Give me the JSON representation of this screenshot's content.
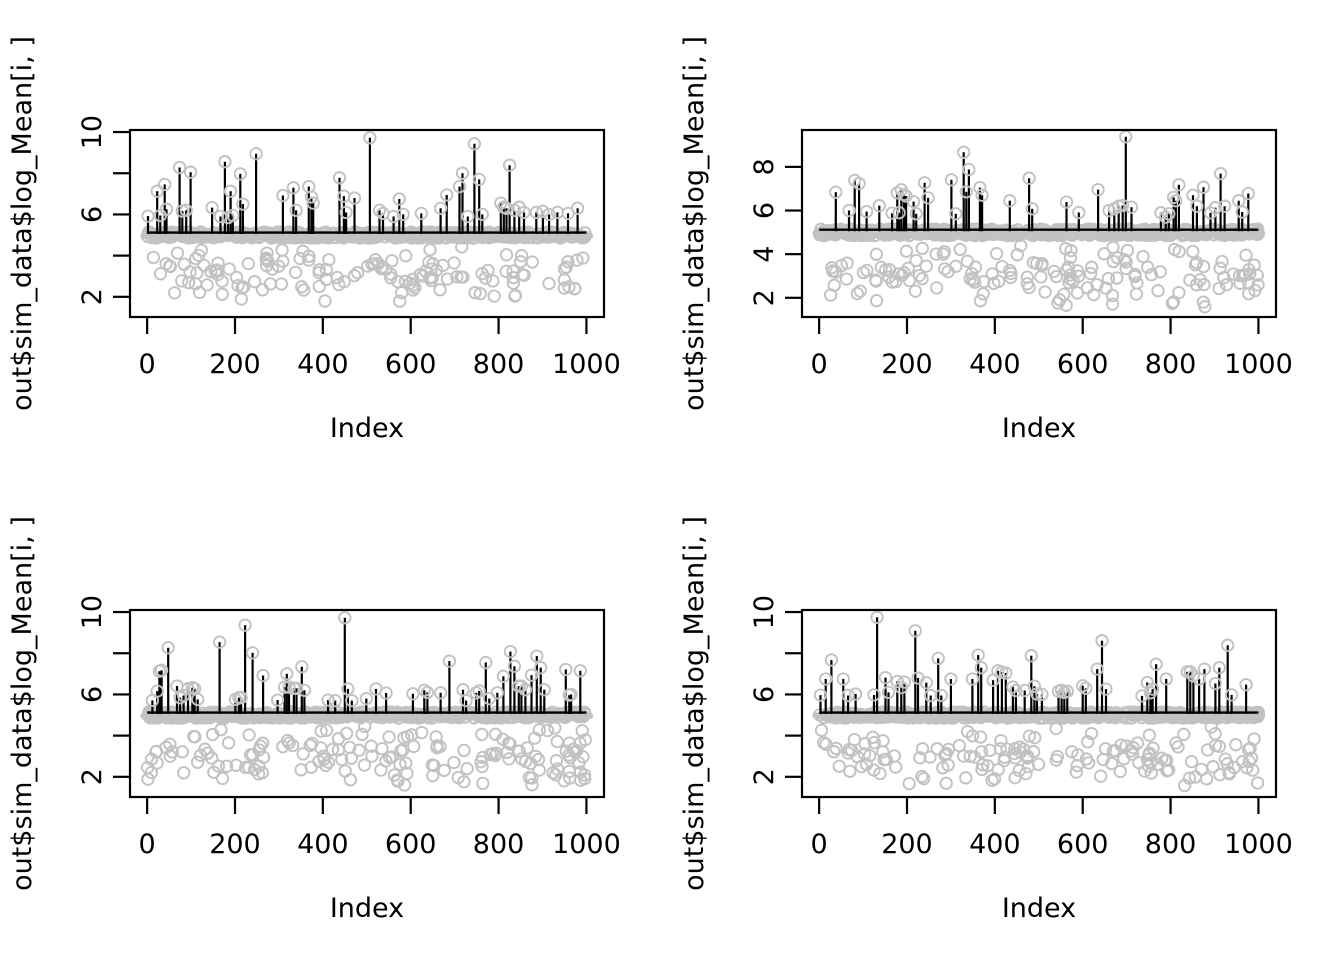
{
  "figure": {
    "background": "#ffffff",
    "grid": "2x2",
    "colors": {
      "point_stroke": "#c2c2c2",
      "baseline_band": "#c2c2c2",
      "baseline_line": "#000000",
      "stem": "#000000",
      "box": "#000000",
      "text": "#000000"
    }
  },
  "chart_data": [
    {
      "id": "panel-top-left",
      "position": "top-left",
      "type": "scatter",
      "title": "",
      "xlabel": "Index",
      "ylabel": "out$sim_data$log_Mean[i, ]",
      "xlim": [
        -39,
        1040
      ],
      "ylim": [
        1.02,
        10.1
      ],
      "xticks": [
        0,
        200,
        400,
        600,
        800,
        1000
      ],
      "xtick_labels": [
        "0",
        "200",
        "400",
        "600",
        "800",
        "1000"
      ],
      "yticks": [
        2,
        4,
        6,
        8,
        10
      ],
      "ytick_labels": [
        "2",
        "",
        "6",
        "",
        "10"
      ],
      "grid": false,
      "legend": null,
      "n_points_total": 1000,
      "baseline": 5,
      "scatter": {
        "seed": 101,
        "n_below": 135,
        "below_y_min": 1.5,
        "below_y_max": 4.6,
        "n_band": 520,
        "band_halfwidth": 0.15
      },
      "spikes": [
        [
          2,
          5.92
        ],
        [
          23,
          7.13
        ],
        [
          30,
          5.95
        ],
        [
          40,
          7.46
        ],
        [
          44,
          6.25
        ],
        [
          74,
          8.28
        ],
        [
          80,
          6.16
        ],
        [
          89,
          6.2
        ],
        [
          99,
          8.05
        ],
        [
          148,
          6.33
        ],
        [
          167,
          5.9
        ],
        [
          177,
          8.56
        ],
        [
          184,
          5.85
        ],
        [
          190,
          7.13
        ],
        [
          195,
          5.95
        ],
        [
          212,
          7.97
        ],
        [
          218,
          6.5
        ],
        [
          248,
          8.95
        ],
        [
          309,
          6.92
        ],
        [
          333,
          7.3
        ],
        [
          339,
          6.2
        ],
        [
          368,
          7.35
        ],
        [
          374,
          6.85
        ],
        [
          378,
          6.55
        ],
        [
          438,
          7.78
        ],
        [
          448,
          6.89
        ],
        [
          453,
          6.1
        ],
        [
          472,
          6.8
        ],
        [
          507,
          9.72
        ],
        [
          529,
          6.2
        ],
        [
          537,
          6.05
        ],
        [
          561,
          5.9
        ],
        [
          574,
          6.75
        ],
        [
          583,
          6.0
        ],
        [
          624,
          6.05
        ],
        [
          668,
          6.3
        ],
        [
          682,
          6.95
        ],
        [
          711,
          7.35
        ],
        [
          718,
          8.0
        ],
        [
          730,
          5.9
        ],
        [
          745,
          9.43
        ],
        [
          756,
          7.7
        ],
        [
          763,
          6.0
        ],
        [
          805,
          6.55
        ],
        [
          812,
          6.35
        ],
        [
          818,
          6.3
        ],
        [
          825,
          8.39
        ],
        [
          836,
          6.2
        ],
        [
          847,
          6.35
        ],
        [
          858,
          6.1
        ],
        [
          886,
          6.1
        ],
        [
          901,
          6.15
        ],
        [
          915,
          6.0
        ],
        [
          934,
          6.1
        ],
        [
          958,
          6.05
        ],
        [
          980,
          6.3
        ]
      ]
    },
    {
      "id": "panel-top-right",
      "position": "top-right",
      "type": "scatter",
      "title": "",
      "xlabel": "Index",
      "ylabel": "out$sim_data$log_Mean[i, ]",
      "xlim": [
        -39,
        1040
      ],
      "ylim": [
        1.12,
        9.69
      ],
      "xticks": [
        0,
        200,
        400,
        600,
        800,
        1000
      ],
      "xtick_labels": [
        "0",
        "200",
        "400",
        "600",
        "800",
        "1000"
      ],
      "yticks": [
        2,
        4,
        6,
        8
      ],
      "ytick_labels": [
        "2",
        "4",
        "6",
        "8"
      ],
      "grid": false,
      "legend": null,
      "n_points_total": 1000,
      "baseline": 5,
      "scatter": {
        "seed": 202,
        "n_below": 150,
        "below_y_min": 1.5,
        "below_y_max": 4.6,
        "n_band": 520,
        "band_halfwidth": 0.15
      },
      "spikes": [
        [
          38,
          6.84
        ],
        [
          68,
          6.0
        ],
        [
          81,
          7.38
        ],
        [
          91,
          7.24
        ],
        [
          108,
          5.95
        ],
        [
          137,
          6.22
        ],
        [
          166,
          5.88
        ],
        [
          178,
          6.81
        ],
        [
          182,
          5.9
        ],
        [
          187,
          6.95
        ],
        [
          193,
          6.74
        ],
        [
          198,
          6.66
        ],
        [
          215,
          6.41
        ],
        [
          221,
          5.85
        ],
        [
          240,
          7.27
        ],
        [
          248,
          6.58
        ],
        [
          301,
          7.41
        ],
        [
          311,
          5.85
        ],
        [
          329,
          8.67
        ],
        [
          335,
          6.86
        ],
        [
          341,
          7.88
        ],
        [
          366,
          7.05
        ],
        [
          371,
          6.7
        ],
        [
          434,
          6.45
        ],
        [
          478,
          7.48
        ],
        [
          485,
          6.08
        ],
        [
          563,
          6.39
        ],
        [
          591,
          5.91
        ],
        [
          635,
          6.96
        ],
        [
          660,
          6.0
        ],
        [
          672,
          6.08
        ],
        [
          682,
          6.2
        ],
        [
          691,
          6.23
        ],
        [
          698,
          9.38
        ],
        [
          711,
          6.15
        ],
        [
          778,
          5.9
        ],
        [
          789,
          5.7
        ],
        [
          796,
          5.85
        ],
        [
          807,
          6.6
        ],
        [
          812,
          6.45
        ],
        [
          819,
          7.18
        ],
        [
          851,
          6.7
        ],
        [
          860,
          6.2
        ],
        [
          875,
          7.07
        ],
        [
          891,
          5.89
        ],
        [
          902,
          6.13
        ],
        [
          914,
          7.69
        ],
        [
          923,
          6.2
        ],
        [
          955,
          6.45
        ],
        [
          963,
          5.93
        ],
        [
          977,
          6.78
        ]
      ]
    },
    {
      "id": "panel-bottom-left",
      "position": "bottom-left",
      "type": "scatter",
      "title": "",
      "xlabel": "Index",
      "ylabel": "out$sim_data$log_Mean[i, ]",
      "xlim": [
        -39,
        1040
      ],
      "ylim": [
        1.02,
        10.1
      ],
      "xticks": [
        0,
        200,
        400,
        600,
        800,
        1000
      ],
      "xtick_labels": [
        "0",
        "200",
        "400",
        "600",
        "800",
        "1000"
      ],
      "yticks": [
        2,
        4,
        6,
        8,
        10
      ],
      "ytick_labels": [
        "2",
        "",
        "6",
        "",
        "10"
      ],
      "grid": false,
      "legend": null,
      "n_points_total": 1000,
      "baseline": 5,
      "scatter": {
        "seed": 303,
        "n_below": 160,
        "below_y_min": 1.45,
        "below_y_max": 4.6,
        "n_band": 520,
        "band_halfwidth": 0.15
      },
      "spikes": [
        [
          12,
          5.71
        ],
        [
          23,
          6.16
        ],
        [
          28,
          7.13
        ],
        [
          33,
          7.17
        ],
        [
          48,
          8.27
        ],
        [
          68,
          6.41
        ],
        [
          75,
          5.84
        ],
        [
          83,
          5.95
        ],
        [
          93,
          6.28
        ],
        [
          103,
          6.33
        ],
        [
          108,
          6.28
        ],
        [
          115,
          5.76
        ],
        [
          165,
          8.54
        ],
        [
          201,
          5.76
        ],
        [
          209,
          5.84
        ],
        [
          214,
          5.84
        ],
        [
          223,
          9.36
        ],
        [
          240,
          8.02
        ],
        [
          264,
          6.92
        ],
        [
          297,
          5.73
        ],
        [
          313,
          6.35
        ],
        [
          318,
          7.0
        ],
        [
          323,
          6.35
        ],
        [
          334,
          6.3
        ],
        [
          340,
          6.3
        ],
        [
          352,
          7.34
        ],
        [
          358,
          6.2
        ],
        [
          412,
          5.73
        ],
        [
          428,
          5.7
        ],
        [
          450,
          9.72
        ],
        [
          457,
          6.27
        ],
        [
          466,
          5.7
        ],
        [
          499,
          5.8
        ],
        [
          521,
          6.27
        ],
        [
          544,
          6.07
        ],
        [
          605,
          6.03
        ],
        [
          631,
          6.2
        ],
        [
          638,
          6.1
        ],
        [
          668,
          6.08
        ],
        [
          688,
          7.62
        ],
        [
          719,
          6.23
        ],
        [
          726,
          5.7
        ],
        [
          749,
          6.08
        ],
        [
          756,
          6.17
        ],
        [
          771,
          7.55
        ],
        [
          779,
          5.8
        ],
        [
          797,
          6.08
        ],
        [
          811,
          6.88
        ],
        [
          827,
          8.08
        ],
        [
          836,
          7.37
        ],
        [
          846,
          6.4
        ],
        [
          852,
          6.4
        ],
        [
          861,
          6.23
        ],
        [
          875,
          6.94
        ],
        [
          887,
          7.86
        ],
        [
          896,
          7.3
        ],
        [
          904,
          6.23
        ],
        [
          953,
          7.21
        ],
        [
          961,
          5.97
        ],
        [
          965,
          6.0
        ],
        [
          986,
          7.15
        ]
      ]
    },
    {
      "id": "panel-bottom-right",
      "position": "bottom-right",
      "type": "scatter",
      "title": "",
      "xlabel": "Index",
      "ylabel": "out$sim_data$log_Mean[i, ]",
      "xlim": [
        -39,
        1040
      ],
      "ylim": [
        1.02,
        10.1
      ],
      "xticks": [
        0,
        200,
        400,
        600,
        800,
        1000
      ],
      "xtick_labels": [
        "0",
        "200",
        "400",
        "600",
        "800",
        "1000"
      ],
      "yticks": [
        2,
        4,
        6,
        8,
        10
      ],
      "ytick_labels": [
        "2",
        "",
        "6",
        "",
        "10"
      ],
      "grid": false,
      "legend": null,
      "n_points_total": 1000,
      "baseline": 5,
      "scatter": {
        "seed": 404,
        "n_below": 150,
        "below_y_min": 1.45,
        "below_y_max": 4.6,
        "n_band": 520,
        "band_halfwidth": 0.15
      },
      "spikes": [
        [
          3,
          5.97
        ],
        [
          15,
          6.75
        ],
        [
          28,
          7.67
        ],
        [
          55,
          6.75
        ],
        [
          66,
          5.95
        ],
        [
          83,
          6.02
        ],
        [
          125,
          5.98
        ],
        [
          132,
          9.74
        ],
        [
          151,
          6.82
        ],
        [
          158,
          6.1
        ],
        [
          178,
          6.63
        ],
        [
          187,
          6.33
        ],
        [
          194,
          6.6
        ],
        [
          219,
          9.09
        ],
        [
          225,
          6.8
        ],
        [
          244,
          6.57
        ],
        [
          254,
          5.95
        ],
        [
          271,
          7.75
        ],
        [
          278,
          5.95
        ],
        [
          300,
          6.75
        ],
        [
          349,
          6.75
        ],
        [
          362,
          7.91
        ],
        [
          369,
          7.3
        ],
        [
          396,
          6.69
        ],
        [
          407,
          7.15
        ],
        [
          416,
          7.08
        ],
        [
          425,
          7.04
        ],
        [
          441,
          6.36
        ],
        [
          448,
          6.19
        ],
        [
          468,
          6.19
        ],
        [
          483,
          7.88
        ],
        [
          490,
          6.4
        ],
        [
          496,
          6.02
        ],
        [
          507,
          6.0
        ],
        [
          545,
          6.15
        ],
        [
          552,
          6.2
        ],
        [
          558,
          6.1
        ],
        [
          565,
          6.15
        ],
        [
          600,
          6.42
        ],
        [
          607,
          6.3
        ],
        [
          633,
          7.23
        ],
        [
          644,
          8.61
        ],
        [
          653,
          6.26
        ],
        [
          735,
          5.93
        ],
        [
          747,
          6.58
        ],
        [
          754,
          6.08
        ],
        [
          759,
          6.26
        ],
        [
          767,
          7.47
        ],
        [
          790,
          6.75
        ],
        [
          838,
          7.1
        ],
        [
          845,
          7.1
        ],
        [
          852,
          6.9
        ],
        [
          865,
          6.75
        ],
        [
          877,
          7.23
        ],
        [
          902,
          6.53
        ],
        [
          911,
          7.3
        ],
        [
          930,
          8.39
        ],
        [
          939,
          5.98
        ],
        [
          972,
          6.48
        ]
      ]
    }
  ]
}
